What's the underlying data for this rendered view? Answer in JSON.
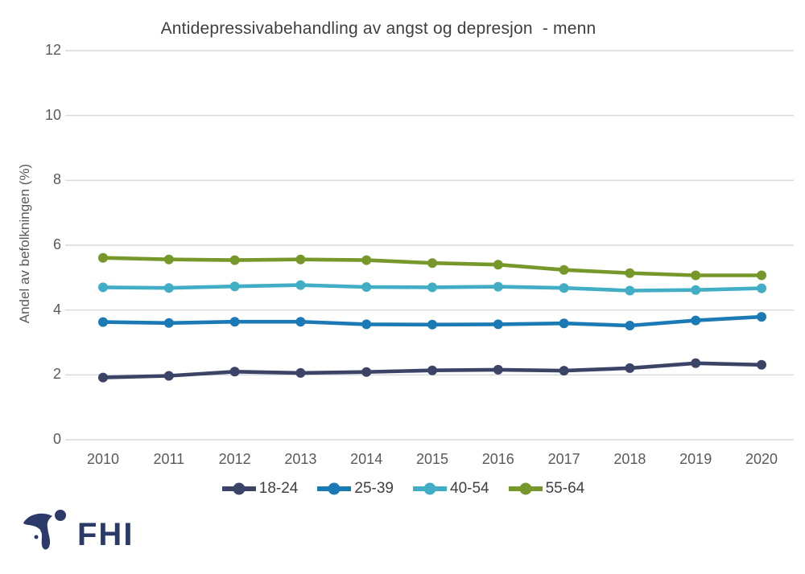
{
  "title": "Antidepressivabehandling av angst og depresjon  - menn",
  "y_axis_title": "Andel av befolkningen  (%)",
  "logo": {
    "text": "FHI",
    "color": "#2b3a68"
  },
  "colors": {
    "grid": "#d9d9d9",
    "axis_text": "#595959",
    "title_text": "#3f3f3f"
  },
  "chart_data": {
    "type": "line",
    "title": "Antidepressivabehandling av angst og depresjon  - menn",
    "xlabel": "",
    "ylabel": "Andel av befolkningen  (%)",
    "ylim": [
      0,
      12
    ],
    "yticks": [
      0,
      2,
      4,
      6,
      8,
      10,
      12
    ],
    "grid": true,
    "legend_position": "bottom",
    "categories": [
      "2010",
      "2011",
      "2012",
      "2013",
      "2014",
      "2015",
      "2016",
      "2017",
      "2018",
      "2019",
      "2020"
    ],
    "series": [
      {
        "name": "18-24",
        "color": "#3b4467",
        "values": [
          1.92,
          1.97,
          2.1,
          2.06,
          2.09,
          2.14,
          2.16,
          2.13,
          2.21,
          2.36,
          2.31
        ]
      },
      {
        "name": "25-39",
        "color": "#1b7ab5",
        "values": [
          3.63,
          3.6,
          3.64,
          3.64,
          3.56,
          3.55,
          3.56,
          3.59,
          3.52,
          3.68,
          3.79
        ]
      },
      {
        "name": "40-54",
        "color": "#42aec5",
        "values": [
          4.7,
          4.68,
          4.73,
          4.77,
          4.71,
          4.7,
          4.72,
          4.68,
          4.6,
          4.62,
          4.67
        ]
      },
      {
        "name": "55-64",
        "color": "#76982b",
        "values": [
          5.61,
          5.56,
          5.54,
          5.56,
          5.54,
          5.45,
          5.4,
          5.24,
          5.14,
          5.07,
          5.07
        ]
      }
    ]
  }
}
